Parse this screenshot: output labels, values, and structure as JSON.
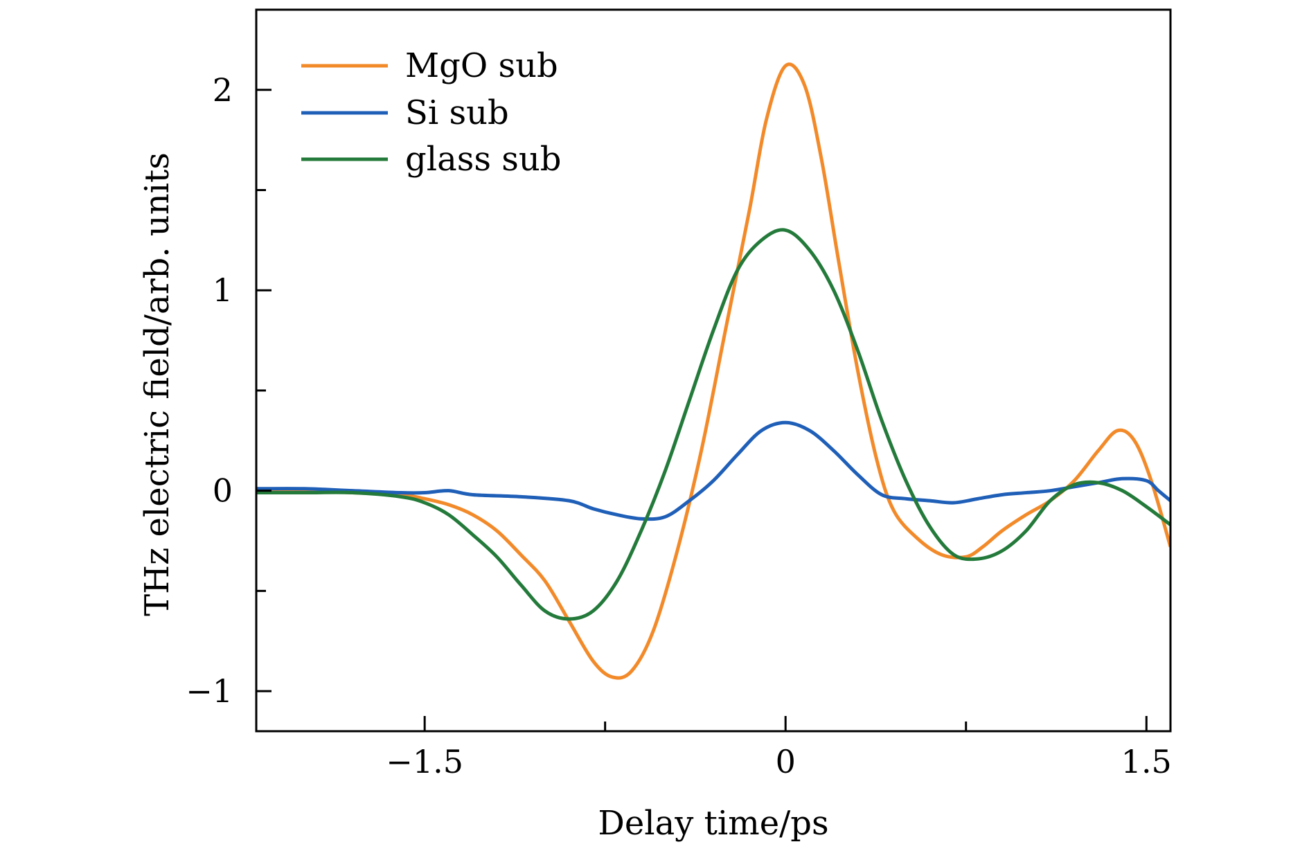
{
  "chart_data": {
    "type": "line",
    "title": "",
    "xlabel": "Delay time/ps",
    "ylabel": "THz electric field/arb. units",
    "xlim": [
      -2.2,
      1.6
    ],
    "ylim": [
      -1.2,
      2.4
    ],
    "x_ticks_major": [
      -1.5,
      0,
      1.5
    ],
    "x_tick_labels": [
      "−1.5",
      "0",
      "1.5"
    ],
    "x_ticks_minor": [
      -0.75,
      0.75
    ],
    "y_ticks_major": [
      -1,
      0,
      1,
      2
    ],
    "y_tick_labels": [
      "−1",
      "0",
      "1",
      "2"
    ],
    "y_ticks_minor": [
      -0.5,
      0.5,
      1.5
    ],
    "grid": false,
    "legend_position": "top-left",
    "series": [
      {
        "name": "MgO sub",
        "color": "#f28a2a",
        "points": [
          [
            -2.2,
            0.0
          ],
          [
            -2.0,
            0.0
          ],
          [
            -1.8,
            -0.01
          ],
          [
            -1.6,
            -0.02
          ],
          [
            -1.5,
            -0.04
          ],
          [
            -1.4,
            -0.07
          ],
          [
            -1.3,
            -0.12
          ],
          [
            -1.2,
            -0.2
          ],
          [
            -1.1,
            -0.32
          ],
          [
            -1.0,
            -0.45
          ],
          [
            -0.9,
            -0.65
          ],
          [
            -0.8,
            -0.85
          ],
          [
            -0.72,
            -0.93
          ],
          [
            -0.64,
            -0.9
          ],
          [
            -0.55,
            -0.7
          ],
          [
            -0.45,
            -0.3
          ],
          [
            -0.35,
            0.2
          ],
          [
            -0.25,
            0.8
          ],
          [
            -0.15,
            1.4
          ],
          [
            -0.08,
            1.85
          ],
          [
            0.0,
            2.12
          ],
          [
            0.08,
            2.02
          ],
          [
            0.15,
            1.65
          ],
          [
            0.22,
            1.15
          ],
          [
            0.3,
            0.6
          ],
          [
            0.38,
            0.15
          ],
          [
            0.45,
            -0.1
          ],
          [
            0.55,
            -0.24
          ],
          [
            0.65,
            -0.32
          ],
          [
            0.75,
            -0.33
          ],
          [
            0.82,
            -0.28
          ],
          [
            0.9,
            -0.2
          ],
          [
            1.0,
            -0.12
          ],
          [
            1.1,
            -0.05
          ],
          [
            1.2,
            0.05
          ],
          [
            1.3,
            0.2
          ],
          [
            1.38,
            0.3
          ],
          [
            1.45,
            0.25
          ],
          [
            1.52,
            0.05
          ],
          [
            1.6,
            -0.28
          ]
        ]
      },
      {
        "name": "Si sub",
        "color": "#1f5fb8",
        "points": [
          [
            -2.2,
            0.01
          ],
          [
            -2.0,
            0.01
          ],
          [
            -1.8,
            0.0
          ],
          [
            -1.6,
            -0.01
          ],
          [
            -1.5,
            -0.01
          ],
          [
            -1.4,
            0.0
          ],
          [
            -1.3,
            -0.02
          ],
          [
            -1.1,
            -0.03
          ],
          [
            -0.9,
            -0.05
          ],
          [
            -0.8,
            -0.09
          ],
          [
            -0.7,
            -0.12
          ],
          [
            -0.6,
            -0.14
          ],
          [
            -0.5,
            -0.13
          ],
          [
            -0.4,
            -0.05
          ],
          [
            -0.3,
            0.05
          ],
          [
            -0.2,
            0.18
          ],
          [
            -0.1,
            0.3
          ],
          [
            0.0,
            0.34
          ],
          [
            0.1,
            0.3
          ],
          [
            0.2,
            0.2
          ],
          [
            0.3,
            0.08
          ],
          [
            0.4,
            -0.02
          ],
          [
            0.5,
            -0.04
          ],
          [
            0.6,
            -0.05
          ],
          [
            0.7,
            -0.06
          ],
          [
            0.8,
            -0.04
          ],
          [
            0.9,
            -0.02
          ],
          [
            1.0,
            -0.01
          ],
          [
            1.1,
            0.0
          ],
          [
            1.2,
            0.02
          ],
          [
            1.3,
            0.04
          ],
          [
            1.4,
            0.06
          ],
          [
            1.5,
            0.05
          ],
          [
            1.55,
            0.0
          ],
          [
            1.6,
            -0.05
          ]
        ]
      },
      {
        "name": "glass sub",
        "color": "#237a3a",
        "points": [
          [
            -2.2,
            -0.01
          ],
          [
            -2.0,
            -0.01
          ],
          [
            -1.8,
            -0.01
          ],
          [
            -1.6,
            -0.03
          ],
          [
            -1.5,
            -0.06
          ],
          [
            -1.4,
            -0.12
          ],
          [
            -1.3,
            -0.22
          ],
          [
            -1.2,
            -0.33
          ],
          [
            -1.1,
            -0.47
          ],
          [
            -1.0,
            -0.6
          ],
          [
            -0.9,
            -0.64
          ],
          [
            -0.8,
            -0.6
          ],
          [
            -0.7,
            -0.45
          ],
          [
            -0.6,
            -0.2
          ],
          [
            -0.5,
            0.1
          ],
          [
            -0.4,
            0.45
          ],
          [
            -0.3,
            0.8
          ],
          [
            -0.2,
            1.1
          ],
          [
            -0.1,
            1.25
          ],
          [
            0.0,
            1.3
          ],
          [
            0.1,
            1.2
          ],
          [
            0.2,
            1.0
          ],
          [
            0.3,
            0.7
          ],
          [
            0.4,
            0.35
          ],
          [
            0.5,
            0.05
          ],
          [
            0.6,
            -0.18
          ],
          [
            0.7,
            -0.32
          ],
          [
            0.8,
            -0.34
          ],
          [
            0.9,
            -0.3
          ],
          [
            1.0,
            -0.2
          ],
          [
            1.1,
            -0.05
          ],
          [
            1.2,
            0.03
          ],
          [
            1.3,
            0.04
          ],
          [
            1.4,
            0.0
          ],
          [
            1.5,
            -0.08
          ],
          [
            1.6,
            -0.17
          ]
        ]
      }
    ]
  }
}
